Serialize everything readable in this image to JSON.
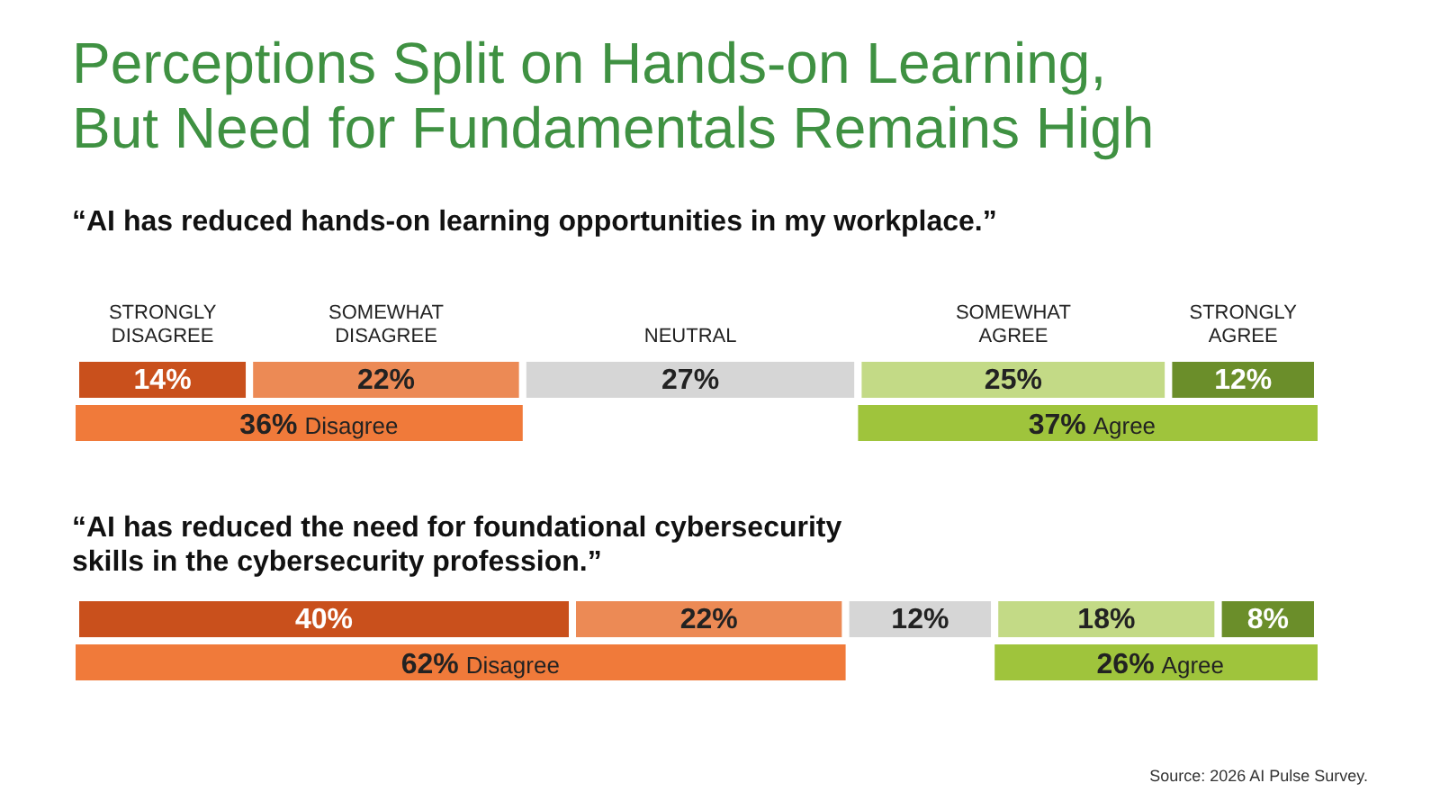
{
  "chart_data": [
    {
      "type": "bar",
      "orientation": "horizontal",
      "stacked": true,
      "title": "Perceptions Split on Hands-on Learning, But Need for Fundamentals Remains High",
      "subtitle": "“AI has reduced hands-on learning opportunities in my workplace.”",
      "categories": [
        null
      ],
      "series": [
        {
          "name": "STRONGLY DISAGREE",
          "color": "#c9501c",
          "values": [
            14
          ],
          "value_labels": [
            "14%"
          ]
        },
        {
          "name": "SOMEWHAT DISAGREE",
          "color": "#ec8a55",
          "values": [
            22
          ],
          "value_labels": [
            "22%"
          ]
        },
        {
          "name": "NEUTRAL",
          "color": "#d6d6d6",
          "values": [
            27
          ],
          "value_labels": [
            "27%"
          ]
        },
        {
          "name": "SOMEWHAT AGREE",
          "color": "#c3da86",
          "values": [
            25
          ],
          "value_labels": [
            "25%"
          ]
        },
        {
          "name": "STRONGLY AGREE",
          "color": "#6b8e2a",
          "values": [
            12
          ],
          "value_labels": [
            "12%"
          ]
        }
      ],
      "bands": [
        {
          "axis": "x",
          "from": 0,
          "to": 36,
          "label": "36% Disagree",
          "color": "#f07a3a"
        },
        {
          "axis": "x",
          "from": 63,
          "to": 100,
          "label": "37% Agree",
          "color": "#9fc43c"
        }
      ]
    },
    {
      "type": "bar",
      "orientation": "horizontal",
      "stacked": true,
      "title": "“AI has reduced the need for foundational cybersecurity skills in the cybersecurity profession.”",
      "categories": [
        null
      ],
      "series": [
        {
          "color": "#c9501c",
          "values": [
            40
          ],
          "value_labels": [
            "40%"
          ]
        },
        {
          "color": "#ec8a55",
          "values": [
            22
          ],
          "value_labels": [
            "22%"
          ]
        },
        {
          "color": "#d6d6d6",
          "values": [
            12
          ],
          "value_labels": [
            "12%"
          ]
        },
        {
          "color": "#c3da86",
          "values": [
            18
          ],
          "value_labels": [
            "18%"
          ]
        },
        {
          "color": "#6b8e2a",
          "values": [
            8
          ],
          "value_labels": [
            "8%"
          ]
        }
      ],
      "bands": [
        {
          "axis": "x",
          "from": 0,
          "to": 62,
          "label": "62% Disagree",
          "color": "#f07a3a"
        },
        {
          "axis": "x",
          "from": 74,
          "to": 100,
          "label": "26% Agree",
          "color": "#9fc43c"
        }
      ],
      "annotations": [
        "Source: 2026 AI Pulse Survey."
      ]
    }
  ]
}
